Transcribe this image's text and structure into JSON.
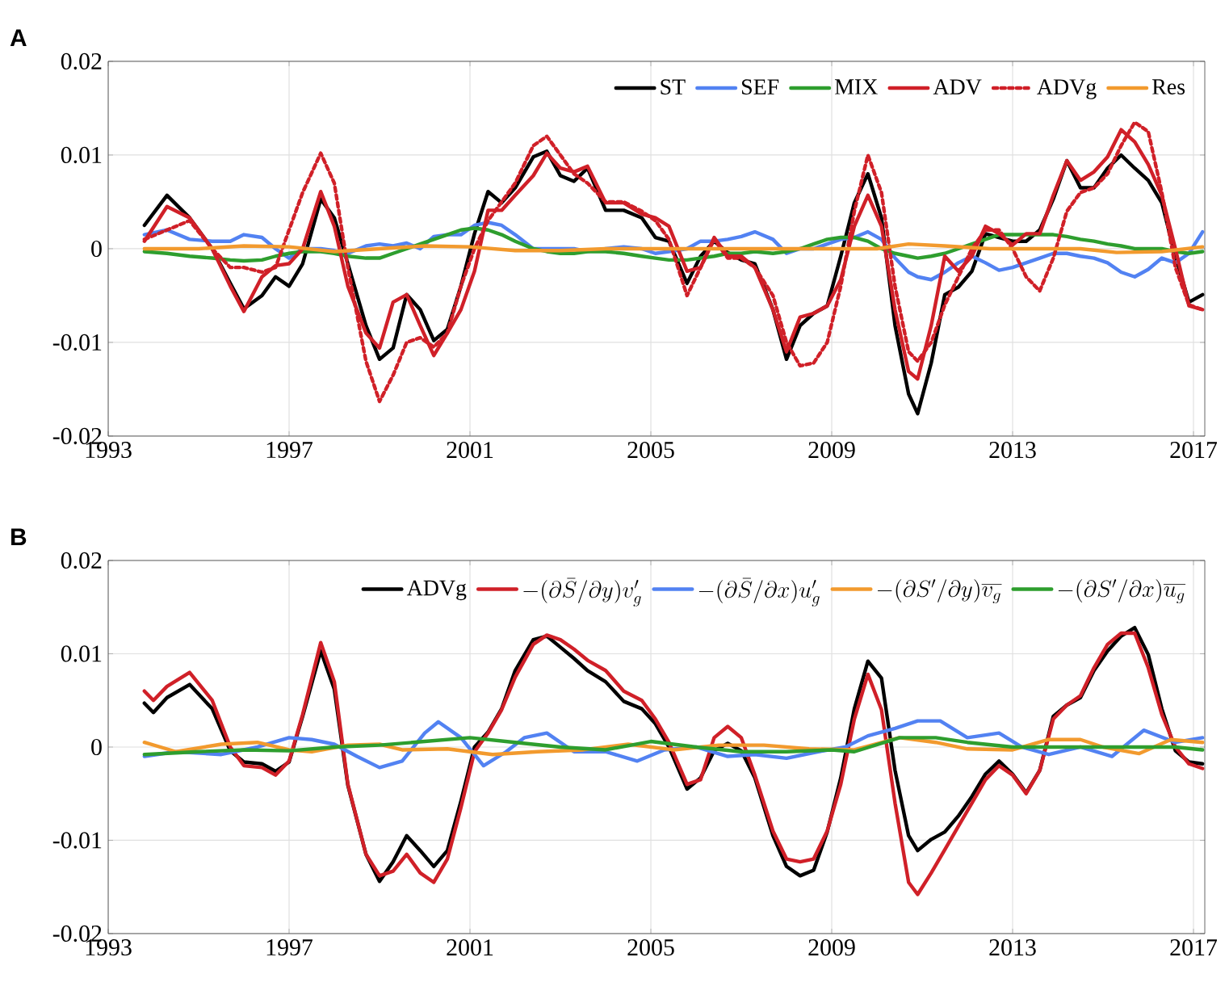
{
  "chart_data": [
    {
      "type": "line",
      "title": "A",
      "x": [
        1993.8,
        1994.3,
        1994.8,
        1995.3,
        1995.7,
        1996.0,
        1996.4,
        1996.7,
        1997.0,
        1997.3,
        1997.7,
        1998.0,
        1998.3,
        1998.7,
        1999.0,
        1999.3,
        1999.6,
        1999.9,
        2000.2,
        2000.5,
        2000.8,
        2001.1,
        2001.4,
        2001.7,
        2002.0,
        2002.4,
        2002.7,
        2003.0,
        2003.3,
        2003.6,
        2004.0,
        2004.4,
        2004.8,
        2005.1,
        2005.4,
        2005.8,
        2006.1,
        2006.4,
        2006.7,
        2007.0,
        2007.3,
        2007.7,
        2008.0,
        2008.3,
        2008.6,
        2008.9,
        2009.2,
        2009.5,
        2009.8,
        2010.1,
        2010.4,
        2010.7,
        2010.9,
        2011.2,
        2011.5,
        2011.8,
        2012.1,
        2012.4,
        2012.7,
        2013.0,
        2013.3,
        2013.6,
        2013.9,
        2014.2,
        2014.5,
        2014.8,
        2015.1,
        2015.4,
        2015.7,
        2016.0,
        2016.3,
        2016.6,
        2016.9,
        2017.2
      ],
      "series": [
        {
          "name": "ST",
          "color": "#000000",
          "values": [
            0.0025,
            0.0057,
            0.0033,
            0,
            -0.0037,
            -0.0064,
            -0.005,
            -0.003,
            -0.004,
            -0.0016,
            0.0053,
            0.0033,
            -0.0016,
            -0.0082,
            -0.0118,
            -0.0106,
            -0.0049,
            -0.0065,
            -0.0098,
            -0.0086,
            -0.004,
            0.0016,
            0.0061,
            0.0049,
            0.0065,
            0.0098,
            0.0104,
            0.0078,
            0.0072,
            0.0086,
            0.0041,
            0.0041,
            0.0033,
            0.0012,
            0.0008,
            -0.0037,
            -0.0008,
            0.0008,
            -0.0004,
            -0.0012,
            -0.0016,
            -0.0065,
            -0.0118,
            -0.0082,
            -0.0069,
            -0.0061,
            -0.0008,
            0.0049,
            0.008,
            0.0033,
            -0.0082,
            -0.0155,
            -0.0176,
            -0.0122,
            -0.0049,
            -0.0041,
            -0.0024,
            0.0016,
            0.0012,
            0.0008,
            0.0008,
            0.002,
            0.0053,
            0.0094,
            0.0065,
            0.0065,
            0.0086,
            0.01,
            0.0086,
            0.0073,
            0.0049,
            -0.0008,
            -0.0057,
            -0.0049
          ]
        },
        {
          "name": "SEF",
          "color": "#5282f2",
          "values": [
            0.0015,
            0.002,
            0.001,
            0.0008,
            0.0008,
            0.0015,
            0.0012,
            0,
            -0.001,
            0,
            0,
            -0.0002,
            -0.0005,
            0.0003,
            0.0005,
            0.0003,
            0.0006,
            0,
            0.0013,
            0.0015,
            0.0015,
            0.0025,
            0.0028,
            0.0025,
            0.0015,
            0,
            0,
            0,
            0,
            -0.0003,
            0,
            0.0002,
            0,
            -0.0005,
            -0.0003,
            0,
            0.0008,
            0.0008,
            0.001,
            0.0013,
            0.0018,
            0.001,
            -0.0005,
            0,
            0,
            0.0005,
            0.001,
            0.0012,
            0.0018,
            0.001,
            -0.001,
            -0.0025,
            -0.003,
            -0.0033,
            -0.0025,
            -0.0015,
            -0.0008,
            -0.0015,
            -0.0023,
            -0.002,
            -0.0015,
            -0.001,
            -0.0005,
            -0.0005,
            -0.0008,
            -0.001,
            -0.0015,
            -0.0025,
            -0.003,
            -0.0022,
            -0.001,
            -0.0015,
            -0.0005,
            0.0018
          ]
        },
        {
          "name": "MIX",
          "color": "#2e9e2e",
          "values": [
            -0.0003,
            -0.0005,
            -0.0008,
            -0.001,
            -0.0012,
            -0.0013,
            -0.0012,
            -0.0008,
            -0.0005,
            -0.0003,
            -0.0003,
            -0.0005,
            -0.0008,
            -0.001,
            -0.001,
            -0.0005,
            0,
            0.0005,
            0.001,
            0.0015,
            0.002,
            0.0022,
            0.002,
            0.0015,
            0.0008,
            0,
            -0.0003,
            -0.0005,
            -0.0005,
            -0.0003,
            -0.0003,
            -0.0005,
            -0.0008,
            -0.001,
            -0.0012,
            -0.0012,
            -0.001,
            -0.0008,
            -0.0005,
            -0.0005,
            -0.0003,
            -0.0005,
            -0.0003,
            0,
            0.0005,
            0.001,
            0.0012,
            0.0012,
            0.0008,
            0,
            -0.0005,
            -0.0008,
            -0.001,
            -0.0008,
            -0.0005,
            0,
            0.0005,
            0.001,
            0.0015,
            0.0015,
            0.0015,
            0.0015,
            0.0015,
            0.0013,
            0.001,
            0.0008,
            0.0005,
            0.0003,
            0,
            0,
            0,
            -0.0003,
            -0.0005,
            -0.0003
          ]
        },
        {
          "name": "ADV",
          "color": "#d02028",
          "values": [
            0.0008,
            0.0045,
            0.0033,
            0,
            -0.004,
            -0.0067,
            -0.003,
            -0.0018,
            -0.0016,
            0,
            0.0061,
            0.0024,
            -0.004,
            -0.009,
            -0.0106,
            -0.0057,
            -0.0049,
            -0.0082,
            -0.0114,
            -0.009,
            -0.0065,
            -0.0024,
            0.0041,
            0.0041,
            0.0057,
            0.0078,
            0.0102,
            0.0086,
            0.0082,
            0.0088,
            0.0049,
            0.0049,
            0.0037,
            0.0033,
            0.0024,
            -0.0024,
            -0.002,
            0.0012,
            -0.0008,
            -0.0008,
            -0.002,
            -0.0065,
            -0.011,
            -0.0073,
            -0.0069,
            -0.0061,
            -0.0033,
            0.0024,
            0.0057,
            0.0024,
            -0.0065,
            -0.0131,
            -0.0139,
            -0.0082,
            -0.0008,
            -0.0024,
            -0.0008,
            0.0024,
            0.0016,
            0.0004,
            0.0016,
            0.0016,
            0.0057,
            0.0094,
            0.0073,
            0.0082,
            0.0098,
            0.0127,
            0.0114,
            0.009,
            0.0057,
            0,
            -0.0061,
            -0.0065
          ]
        },
        {
          "name": "ADVg",
          "color": "#d02028",
          "line_style": "dotted",
          "values": [
            0.001,
            0.002,
            0.003,
            0,
            -0.002,
            -0.002,
            -0.0025,
            -0.002,
            0.002,
            0.006,
            0.0102,
            0.007,
            -0.002,
            -0.012,
            -0.0163,
            -0.0135,
            -0.01,
            -0.0095,
            -0.0105,
            -0.009,
            -0.004,
            0,
            0.003,
            0.005,
            0.007,
            0.011,
            0.012,
            0.01,
            0.008,
            0.007,
            0.005,
            0.005,
            0.004,
            0.003,
            0.001,
            -0.005,
            -0.002,
            0.001,
            -0.001,
            -0.001,
            -0.002,
            -0.005,
            -0.01,
            -0.0125,
            -0.0122,
            -0.01,
            -0.004,
            0.004,
            0.01,
            0.006,
            -0.004,
            -0.011,
            -0.012,
            -0.01,
            -0.006,
            -0.003,
            0,
            0.002,
            0.002,
            0,
            -0.003,
            -0.0045,
            -0.001,
            0.004,
            0.006,
            0.0065,
            0.008,
            0.011,
            0.0135,
            0.0125,
            0.006,
            -0.002,
            -0.006,
            -0.0065
          ]
        },
        {
          "name": "Res",
          "color": "#f29a2e",
          "x": [
            1993.8,
            1995,
            1996,
            1997,
            1998,
            1999,
            2000,
            2001,
            2002,
            2003,
            2004,
            2005,
            2006,
            2007,
            2008,
            2009,
            2010,
            2010.7,
            2011.5,
            2012.5,
            2013.5,
            2014.5,
            2015.3,
            2016.3,
            2017.2
          ],
          "values": [
            0,
            0,
            0.0003,
            0.0002,
            -0.0003,
            0,
            0.0003,
            0.0002,
            -0.0002,
            -0.0002,
            0,
            0,
            0,
            0,
            0,
            0,
            0,
            0.0005,
            0.0003,
            0,
            0,
            0,
            -0.0004,
            -0.0003,
            0.0002
          ]
        }
      ],
      "xlim": [
        1993,
        2017.25
      ],
      "ylim": [
        -0.02,
        0.02
      ],
      "xticks": [
        1993,
        1997,
        2001,
        2005,
        2009,
        2013,
        2017
      ],
      "yticks": [
        -0.02,
        -0.01,
        0,
        0.01,
        0.02
      ],
      "grid": true,
      "legend": "top right"
    },
    {
      "type": "line",
      "title": "B",
      "x": [
        1993.8,
        1994.0,
        1994.3,
        1994.8,
        1995.3,
        1995.7,
        1996.0,
        1996.4,
        1996.7,
        1997.0,
        1997.3,
        1997.7,
        1998.0,
        1998.3,
        1998.7,
        1999.0,
        1999.3,
        1999.6,
        1999.9,
        2000.2,
        2000.5,
        2000.8,
        2001.1,
        2001.4,
        2001.7,
        2002.0,
        2002.4,
        2002.7,
        2003.0,
        2003.3,
        2003.6,
        2004.0,
        2004.4,
        2004.8,
        2005.1,
        2005.4,
        2005.8,
        2006.1,
        2006.4,
        2006.7,
        2007.0,
        2007.3,
        2007.7,
        2008.0,
        2008.3,
        2008.6,
        2008.9,
        2009.2,
        2009.5,
        2009.8,
        2010.1,
        2010.4,
        2010.7,
        2010.9,
        2011.2,
        2011.5,
        2011.8,
        2012.1,
        2012.4,
        2012.7,
        2013.0,
        2013.3,
        2013.6,
        2013.9,
        2014.2,
        2014.5,
        2014.8,
        2015.1,
        2015.4,
        2015.7,
        2016.0,
        2016.3,
        2016.6,
        2016.9,
        2017.2
      ],
      "series": [
        {
          "name": "ADVg",
          "color": "#000000",
          "values": [
            0.0047,
            0.0037,
            0.0053,
            0.0067,
            0.0041,
            -0.0004,
            -0.0016,
            -0.0018,
            -0.0026,
            -0.0016,
            0.0033,
            0.0103,
            0.0062,
            -0.0041,
            -0.0115,
            -0.0144,
            -0.0123,
            -0.0095,
            -0.0111,
            -0.0128,
            -0.0111,
            -0.0058,
            0,
            0.0016,
            0.0041,
            0.0082,
            0.0115,
            0.0119,
            0.0107,
            0.0095,
            0.0082,
            0.007,
            0.0049,
            0.0041,
            0.0025,
            0,
            -0.0045,
            -0.0033,
            -0.0004,
            0.0004,
            -0.0004,
            -0.0033,
            -0.0095,
            -0.0128,
            -0.0138,
            -0.0132,
            -0.0091,
            -0.0033,
            0.0041,
            0.0092,
            0.0074,
            -0.0025,
            -0.0095,
            -0.0111,
            -0.0099,
            -0.0091,
            -0.0074,
            -0.0053,
            -0.0029,
            -0.0015,
            -0.0029,
            -0.0049,
            -0.0025,
            0.0033,
            0.0045,
            0.0053,
            0.0082,
            0.0103,
            0.0119,
            0.0128,
            0.0099,
            0.0041,
            -0.0004,
            -0.0016,
            -0.0018
          ]
        },
        {
          "name": "-(\\partial \\bar{S}/\\partial y)v_g'",
          "color": "#d02028",
          "values": [
            0.006,
            0.005,
            0.0065,
            0.008,
            0.005,
            0,
            -0.002,
            -0.0022,
            -0.003,
            -0.0015,
            0.0035,
            0.0112,
            0.007,
            -0.004,
            -0.0115,
            -0.0138,
            -0.0133,
            -0.0115,
            -0.0135,
            -0.0145,
            -0.012,
            -0.0065,
            -0.0005,
            0.0015,
            0.004,
            0.0075,
            0.011,
            0.012,
            0.0115,
            0.0105,
            0.0093,
            0.0082,
            0.006,
            0.005,
            0.003,
            0.0005,
            -0.004,
            -0.0035,
            0.001,
            0.0022,
            0.001,
            -0.003,
            -0.009,
            -0.012,
            -0.0123,
            -0.012,
            -0.009,
            -0.004,
            0.003,
            0.0078,
            0.004,
            -0.006,
            -0.0145,
            -0.0158,
            -0.0135,
            -0.011,
            -0.0085,
            -0.006,
            -0.0035,
            -0.002,
            -0.003,
            -0.005,
            -0.0025,
            0.003,
            0.0045,
            0.0055,
            0.0085,
            0.011,
            0.0122,
            0.0122,
            0.0085,
            0.0035,
            0,
            -0.0018,
            -0.0023
          ]
        },
        {
          "name": "-(\\partial \\bar{S}/\\partial x)u_g'",
          "color": "#5282f2",
          "x": [
            1993.8,
            1994.5,
            1995.5,
            1996.3,
            1997,
            1997.5,
            1998,
            1998.5,
            1999,
            1999.5,
            2000,
            2000.3,
            2000.8,
            2001.3,
            2001.8,
            2002.2,
            2002.7,
            2003.3,
            2004,
            2004.7,
            2005.3,
            2006,
            2006.7,
            2007.3,
            2008,
            2008.7,
            2009.3,
            2009.8,
            2010.4,
            2010.9,
            2011.4,
            2012,
            2012.7,
            2013.2,
            2013.8,
            2014.5,
            2015.2,
            2015.9,
            2016.6,
            2017.2
          ],
          "values": [
            -0.001,
            -0.0005,
            -0.0008,
            0,
            0.001,
            0.0008,
            0.0003,
            -0.001,
            -0.0022,
            -0.0015,
            0.0015,
            0.0027,
            0.001,
            -0.002,
            -0.0005,
            0.001,
            0.0015,
            -0.0005,
            -0.0005,
            -0.0015,
            -0.0003,
            0,
            -0.001,
            -0.0008,
            -0.0012,
            -0.0005,
            0,
            0.0012,
            0.002,
            0.0028,
            0.0028,
            0.001,
            0.0015,
            0,
            -0.0008,
            0,
            -0.001,
            0.0018,
            0.0005,
            0.001
          ]
        },
        {
          "name": "-(\\partial S'/\\partial y)\\overline{v_g}",
          "color": "#f29a2e",
          "x": [
            1993.8,
            1994.5,
            1995.5,
            1996.3,
            1997,
            1997.5,
            1998.3,
            1999,
            1999.5,
            2000.5,
            2001.5,
            2002.5,
            2003.5,
            2004.5,
            2005.5,
            2006.5,
            2007.5,
            2008.5,
            2009.5,
            2010.5,
            2011.3,
            2012,
            2013,
            2013.8,
            2014.5,
            2015,
            2015.8,
            2016.5,
            2017.2
          ],
          "values": [
            0.0005,
            -0.0005,
            0.0003,
            0.0005,
            -0.0003,
            -0.0005,
            0.0002,
            0.0003,
            -0.0003,
            -0.0002,
            -0.0008,
            -0.0005,
            -0.0003,
            0.0003,
            -0.0003,
            0.0002,
            0.0002,
            -0.0002,
            -0.0003,
            0.001,
            0.0005,
            -0.0002,
            -0.0003,
            0.0008,
            0.0008,
            0,
            -0.0007,
            0.0008,
            0.0005
          ]
        },
        {
          "name": "-(\\partial S'/\\partial x)\\overline{u_g}",
          "color": "#2e9e2e",
          "x": [
            1993.8,
            1995,
            1996,
            1997,
            1998,
            1999,
            2000,
            2001,
            2002,
            2003,
            2004,
            2005,
            2006,
            2007,
            2008,
            2009,
            2009.5,
            2010.5,
            2011.3,
            2012,
            2013,
            2014,
            2015,
            2016,
            2016.6,
            2017.2
          ],
          "values": [
            -0.0008,
            -0.0005,
            -0.0003,
            -0.0004,
            0,
            0.0002,
            0.0006,
            0.001,
            0.0005,
            0,
            -0.0003,
            0.0006,
            0,
            -0.0005,
            -0.0005,
            -0.0003,
            -0.0005,
            0.001,
            0.001,
            0.0005,
            0,
            0,
            0,
            0,
            0,
            -0.0003
          ]
        }
      ],
      "xlim": [
        1993,
        2017.25
      ],
      "ylim": [
        -0.02,
        0.02
      ],
      "xticks": [
        1993,
        1997,
        2001,
        2005,
        2009,
        2013,
        2017
      ],
      "yticks": [
        -0.02,
        -0.01,
        0,
        0.01,
        0.02
      ],
      "grid": true,
      "legend": "top right"
    }
  ]
}
